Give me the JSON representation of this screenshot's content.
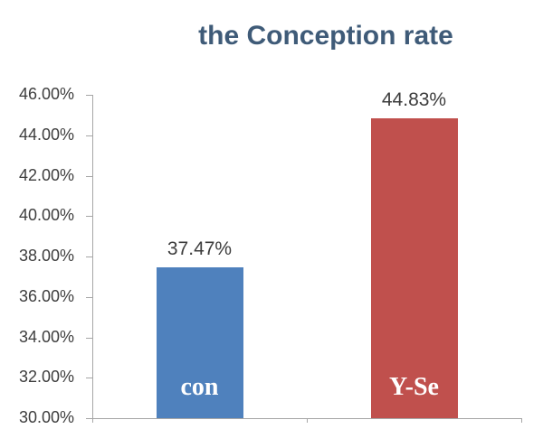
{
  "chart_data": {
    "type": "bar",
    "title": "the Conception rate",
    "categories": [
      "con",
      "Y-Se"
    ],
    "values": [
      37.47,
      44.83
    ],
    "value_labels": [
      "37.47%",
      "44.83%"
    ],
    "bar_colors": [
      "#4F81BD",
      "#C0504D"
    ],
    "ylim": [
      30,
      46
    ],
    "ytick_step": 2,
    "ytick_labels": [
      "30.00%",
      "32.00%",
      "34.00%",
      "36.00%",
      "38.00%",
      "40.00%",
      "42.00%",
      "44.00%",
      "46.00%"
    ],
    "grid": false,
    "legend": false,
    "title_color": "#3F5B78",
    "axis_color": "#A6A6A6",
    "tick_label_color": "#3D3D3D",
    "value_label_color": "#3D3D3D",
    "category_label_color": "#FFFFFF"
  }
}
